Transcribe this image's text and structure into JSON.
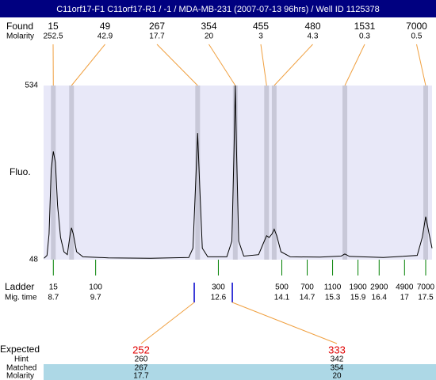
{
  "header": {
    "title": "C11orf17-F1  C11orf17-R1 / -1 / MDA-MB-231 (2007-07-13 96hrs) / Well ID 1125378"
  },
  "found": {
    "label": "Found",
    "molarity_label": "Molarity",
    "sizes": [
      15,
      49,
      267,
      354,
      455,
      480,
      1531,
      7000
    ],
    "molarity": [
      252.5,
      42.9,
      17.7,
      20,
      3,
      4.3,
      0.3,
      0.5
    ],
    "times": [
      8.7,
      9.13,
      12.11,
      13.0,
      13.74,
      13.92,
      15.59,
      17.5
    ]
  },
  "plot": {
    "y_label": "Fluo.",
    "ylim": [
      48,
      534
    ],
    "yticks": [
      48,
      534
    ],
    "xlim": [
      8.47,
      17.65
    ],
    "trace": {
      "x": [
        8.48,
        8.55,
        8.6,
        8.65,
        8.7,
        8.75,
        8.8,
        8.87,
        8.95,
        9.03,
        9.1,
        9.13,
        9.17,
        9.25,
        9.4,
        10,
        11,
        11.9,
        12.0,
        12.06,
        12.11,
        12.16,
        12.22,
        12.35,
        12.8,
        12.92,
        12.97,
        13.0,
        13.03,
        13.08,
        13.2,
        13.55,
        13.65,
        13.74,
        13.8,
        13.87,
        13.92,
        13.98,
        14.08,
        14.3,
        15.0,
        15.5,
        15.59,
        15.7,
        16.5,
        17.3,
        17.42,
        17.5,
        17.58,
        17.65
      ],
      "y": [
        52,
        60,
        120,
        300,
        350,
        320,
        200,
        110,
        70,
        62,
        120,
        137,
        120,
        70,
        56,
        53,
        52,
        54,
        80,
        250,
        401,
        250,
        80,
        56,
        56,
        100,
        350,
        534,
        350,
        100,
        58,
        62,
        90,
        115,
        110,
        120,
        133,
        115,
        70,
        56,
        55,
        58,
        64,
        57,
        54,
        60,
        110,
        168,
        120,
        80
      ]
    }
  },
  "ladder": {
    "label": "Ladder",
    "time_label": "Mig. time",
    "sizes": [
      15,
      100,
      300,
      500,
      700,
      1100,
      1900,
      2900,
      4900,
      7000
    ],
    "times": [
      8.7,
      9.7,
      12.6,
      14.1,
      14.7,
      15.3,
      15.9,
      16.4,
      17,
      17.5
    ]
  },
  "expected": {
    "label": "Expected",
    "values": [
      252,
      333
    ],
    "times": [
      12.03,
      12.93
    ],
    "hint_label": "Hint",
    "hint": [
      260,
      342
    ],
    "matched_label": "Matched",
    "matched": [
      267,
      354
    ],
    "molarity_label": "Molarity",
    "molarity": [
      17.7,
      20
    ]
  }
}
